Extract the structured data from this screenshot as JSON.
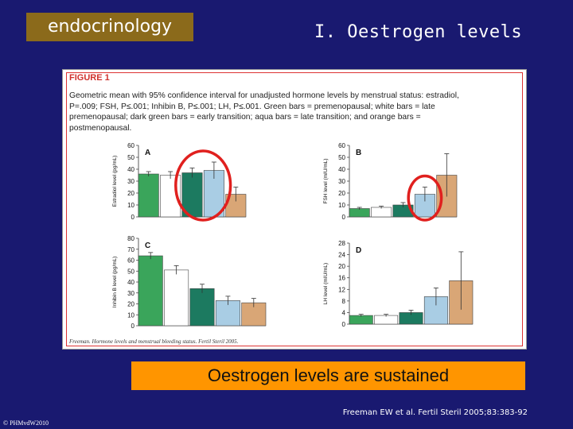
{
  "slide": {
    "tag": "endocrinology",
    "title": "I. Oestrogen levels",
    "banner": "Oestrogen levels are sustained",
    "reference": "Freeman EW et al. Fertil Steril 2005;83:383-92",
    "copyright": "© PHMvdW2010"
  },
  "figure": {
    "label": "FIGURE 1",
    "caption": [
      "Geometric mean with 95% confidence interval for unadjusted hormone levels by menstrual status: estradiol,",
      "P=.009; FSH, P≤.001; Inhibin B, P≤.001; LH, P≤.001. Green bars = premenopausal; white bars = late",
      "premenopausal; dark green bars = early transition; aqua bars = late transition; and orange bars =",
      "postmenopausal."
    ],
    "credit": "Freeman. Hormone levels and menstrual bleeding status. Fertil Steril 2005."
  },
  "colors": {
    "background": "#191970",
    "green": "#3aa55b",
    "white": "#ffffff",
    "dark_green": "#1c7a60",
    "aqua": "#a9cde4",
    "orange": "#d9a676",
    "highlight": "#e0201e"
  },
  "chart_data": [
    {
      "type": "bar",
      "panel": "A",
      "ylabel": "Estradiol level (pg/mL)",
      "ylim": [
        0,
        60
      ],
      "yticks": [
        0,
        10,
        20,
        30,
        40,
        50,
        60
      ],
      "values": [
        36,
        35,
        37,
        39,
        19
      ],
      "errors": [
        2,
        3,
        4,
        7,
        6
      ],
      "highlight": [
        2,
        3
      ]
    },
    {
      "type": "bar",
      "panel": "B",
      "ylabel": "FSH level (mIU/mL)",
      "ylim": [
        0,
        60
      ],
      "yticks": [
        0,
        10,
        20,
        30,
        40,
        50,
        60
      ],
      "values": [
        7,
        8,
        10,
        19,
        35
      ],
      "errors": [
        1,
        1,
        2,
        6,
        18
      ],
      "highlight": [
        3
      ]
    },
    {
      "type": "bar",
      "panel": "C",
      "ylabel": "Inhibin B level (pg/mL)",
      "ylim": [
        0,
        80
      ],
      "yticks": [
        0,
        10,
        20,
        30,
        40,
        50,
        60,
        70,
        80
      ],
      "values": [
        64,
        51,
        34,
        23,
        21
      ],
      "errors": [
        3,
        4,
        4,
        4,
        4
      ],
      "highlight": []
    },
    {
      "type": "bar",
      "panel": "D",
      "ylabel": "LH level (mIU/mL)",
      "ylim": [
        0,
        28
      ],
      "yticks": [
        0,
        4,
        8,
        12,
        16,
        20,
        24,
        28
      ],
      "values": [
        3,
        3,
        4,
        9.5,
        15
      ],
      "errors": [
        0.4,
        0.4,
        0.8,
        3,
        10
      ],
      "highlight": []
    }
  ]
}
